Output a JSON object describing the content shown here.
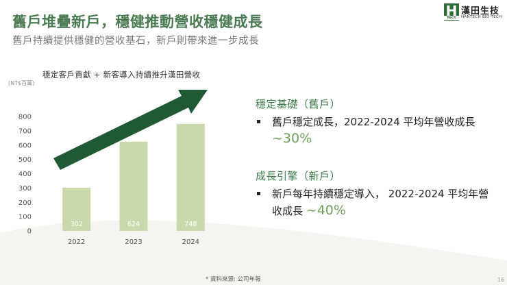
{
  "header": {
    "title": "舊戶堆疊新戶，穩健推動營收穩健成長",
    "subtitle": "舊戶持續提供穩健的營收基石，新戶則帶來進一步成長"
  },
  "logo": {
    "mark_letter": "H",
    "mark_sub": "Tech",
    "name": "漢田生技",
    "name_en": "HANTECH BIO-TECH"
  },
  "chart_data": {
    "type": "bar",
    "title": "穩定客戶貢獻 + 新客導入持續推升漢田營收",
    "unit_label": "(NT$百萬)",
    "categories": [
      "2022",
      "2023",
      "2024"
    ],
    "values": [
      302,
      624,
      748
    ],
    "ylim": [
      0,
      800
    ],
    "yticks": [
      "0",
      "100",
      "200",
      "300",
      "400",
      "500",
      "600",
      "700",
      "800"
    ],
    "bar_color": "#c9d9ab",
    "label_color": "#ffffff",
    "arrow_color": "#1f5a34",
    "grid": false
  },
  "sections": [
    {
      "title": "穩定基礎（舊戶）",
      "bullet_text": "舊戶穩定成長，2022-2024 平均年營收成長",
      "highlight": "~30%"
    },
    {
      "title": "成長引擎（新戶）",
      "bullet_text": "新戶每年持續穩定導入， 2022-2024 平均年營收成長",
      "highlight": "~40%"
    }
  ],
  "footer": {
    "source": "* 資料來源: 公司年報",
    "page_number": "16"
  }
}
